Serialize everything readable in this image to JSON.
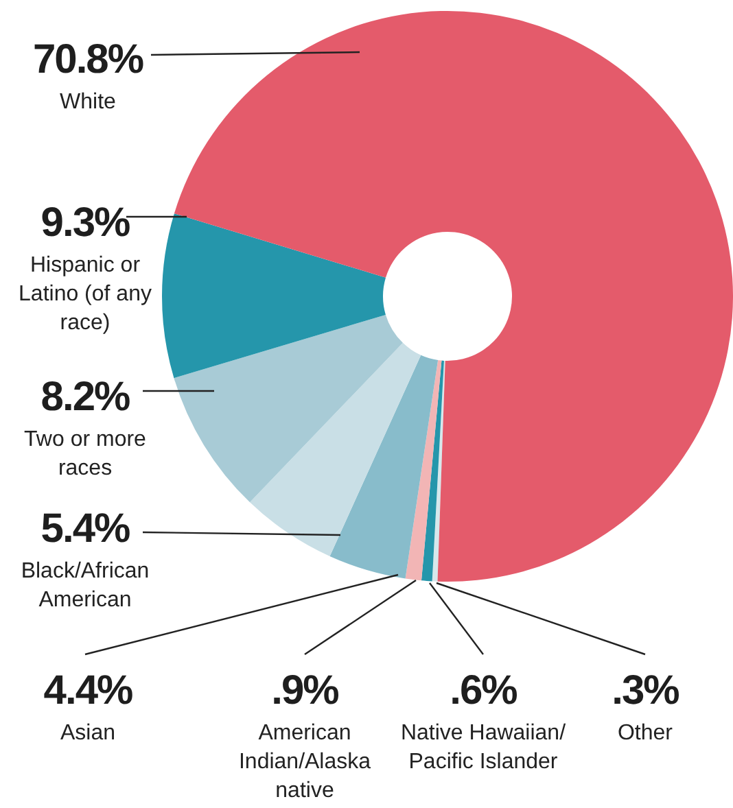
{
  "chart_data": {
    "type": "donut",
    "categories": [
      "White",
      "Hispanic or Latino (of any race)",
      "Two or more races",
      "Black/African American",
      "Asian",
      "American Indian/Alaska native",
      "Native Hawaiian/ Pacific Islander",
      "Other"
    ],
    "values": [
      70.8,
      9.3,
      8.2,
      5.4,
      4.4,
      0.9,
      0.6,
      0.3
    ],
    "colors": [
      "#e45b6b",
      "#2596ab",
      "#a8cbd6",
      "#c9dfe6",
      "#88bccb",
      "#f2b5b5",
      "#2596ab",
      "#d6e8ec"
    ],
    "value_labels": [
      "70.8%",
      "9.3%",
      "8.2%",
      "5.4%",
      "4.4%",
      ".9%",
      ".6%",
      ".3%"
    ]
  }
}
